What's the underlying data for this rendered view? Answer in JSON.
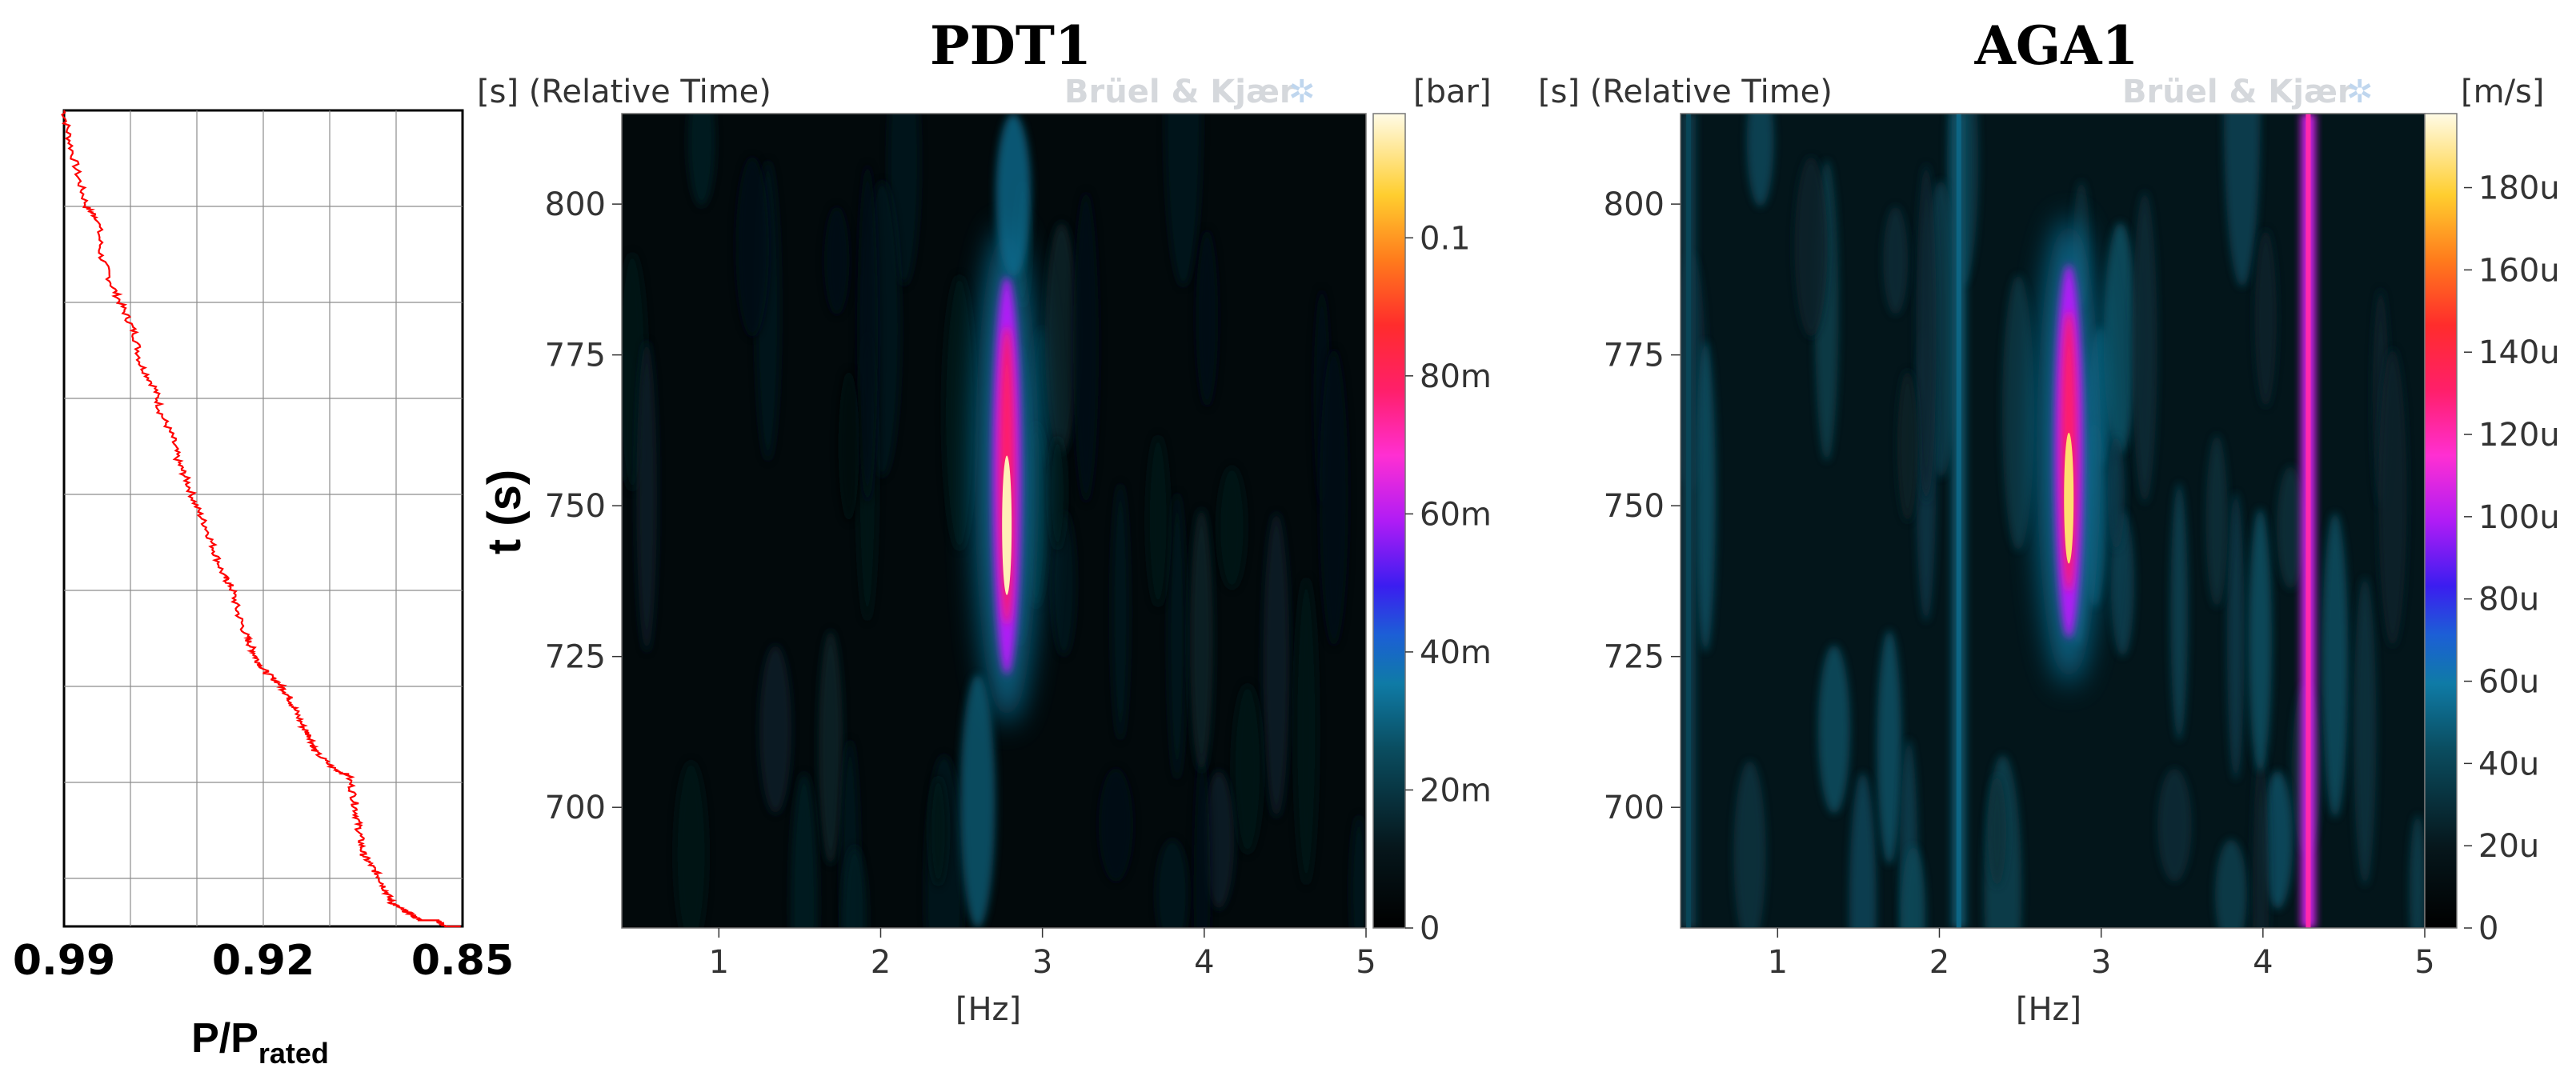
{
  "chart_data": [
    {
      "type": "line",
      "xlabel_main": "P/P",
      "xlabel_sub": "rated",
      "x_ticks": [
        "0.99",
        "0.92",
        "0.85"
      ],
      "x_reversed": true,
      "xlim": [
        0.85,
        0.99
      ],
      "ylim": [
        680,
        815
      ],
      "grid": true,
      "line_color": "#ff0000",
      "series": [
        {
          "x": [
            0.99,
            0.988,
            0.985,
            0.982,
            0.978,
            0.977,
            0.973,
            0.969,
            0.965,
            0.963,
            0.958,
            0.956,
            0.952,
            0.95,
            0.947,
            0.944,
            0.94,
            0.937,
            0.934,
            0.931,
            0.929,
            0.926,
            0.924,
            0.922,
            0.919,
            0.914,
            0.911,
            0.909,
            0.906,
            0.903,
            0.902,
            0.895,
            0.89,
            0.888,
            0.887,
            0.886,
            0.885,
            0.882,
            0.879,
            0.877,
            0.875,
            0.872,
            0.868,
            0.865,
            0.862,
            0.859,
            0.856,
            0.853,
            0.851
          ],
          "y": [
            815,
            810,
            804,
            799,
            797,
            791,
            786,
            782,
            778,
            773,
            769,
            765,
            761,
            757,
            754,
            750,
            746,
            742,
            738,
            736,
            732,
            728,
            726,
            724,
            722,
            720,
            718,
            716,
            713,
            711,
            709,
            706,
            705,
            701,
            698,
            695,
            692,
            690,
            688,
            686,
            684,
            683,
            682,
            681,
            681,
            681,
            680,
            680,
            680
          ]
        }
      ]
    },
    {
      "type": "heatmap",
      "title": "PDT1",
      "ylabel_unit": "[s] (Relative Time)",
      "ylabel_big": "t (s)",
      "xlabel": "[Hz]",
      "watermark": "Brüel & Kjær",
      "x_ticks": [
        "1",
        "2",
        "3",
        "4",
        "5"
      ],
      "y_ticks": [
        "700",
        "725",
        "750",
        "775",
        "800"
      ],
      "xlim": [
        0.4,
        5
      ],
      "ylim": [
        680,
        815
      ],
      "colorbar_unit": "[bar]",
      "colorbar_ticks": [
        "0",
        "20m",
        "40m",
        "60m",
        "80m",
        "0.1"
      ],
      "colorbar_max": 0.118,
      "features": [
        {
          "kind": "peak",
          "f": 2.78,
          "t0": 722,
          "t1": 788,
          "value": 0.115
        },
        {
          "kind": "tail",
          "f": 2.6,
          "t0": 680,
          "t1": 722,
          "value": 0.018
        },
        {
          "kind": "tail",
          "f": 2.82,
          "t0": 788,
          "t1": 815,
          "value": 0.02
        }
      ]
    },
    {
      "type": "heatmap",
      "title": "AGA1",
      "ylabel_unit": "[s] (Relative Time)",
      "xlabel": "[Hz]",
      "watermark": "Brüel & Kjær",
      "x_ticks": [
        "1",
        "2",
        "3",
        "4",
        "5"
      ],
      "y_ticks": [
        "700",
        "725",
        "750",
        "775",
        "800"
      ],
      "xlim": [
        0.4,
        5
      ],
      "ylim": [
        680,
        815
      ],
      "colorbar_unit": "[m/s]",
      "colorbar_ticks": [
        "0",
        "20u",
        "40u",
        "60u",
        "80u",
        "100u",
        "120u",
        "140u",
        "160u",
        "180u"
      ],
      "colorbar_max": 0.000198,
      "features": [
        {
          "kind": "line",
          "f": 4.28,
          "t0": 680,
          "t1": 815,
          "value": 0.000105
        },
        {
          "kind": "line",
          "f": 2.12,
          "t0": 680,
          "t1": 815,
          "value": 4.5e-05
        },
        {
          "kind": "peak",
          "f": 2.8,
          "t0": 728,
          "t1": 790,
          "value": 0.000185
        },
        {
          "kind": "line",
          "f": 0.45,
          "t0": 680,
          "t1": 815,
          "value": 3.5e-05
        }
      ]
    }
  ]
}
